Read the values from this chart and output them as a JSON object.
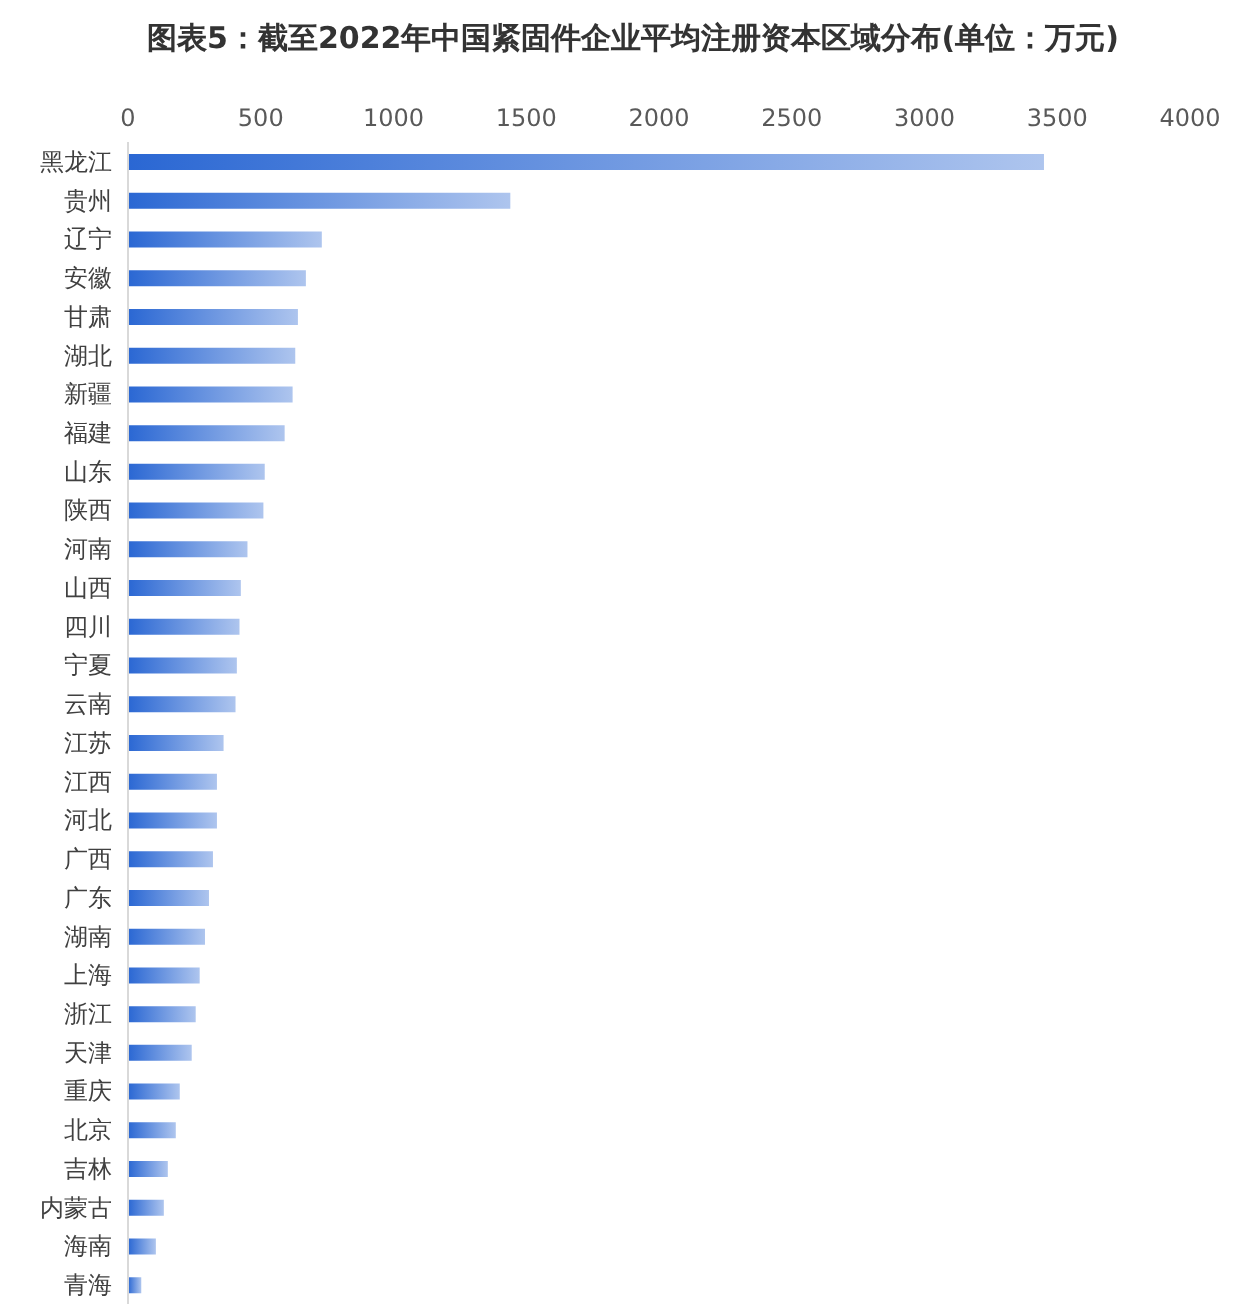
{
  "chart_data": {
    "type": "bar",
    "title": "图表5：截至2022年中国紧固件企业平均注册资本区域分布(单位：万元)",
    "orientation": "horizontal",
    "categories": [
      "黑龙江",
      "贵州",
      "辽宁",
      "安徽",
      "甘肃",
      "湖北",
      "新疆",
      "福建",
      "山东",
      "陕西",
      "河南",
      "山西",
      "四川",
      "宁夏",
      "云南",
      "江苏",
      "江西",
      "河北",
      "广西",
      "广东",
      "湖南",
      "上海",
      "浙江",
      "天津",
      "重庆",
      "北京",
      "吉林",
      "内蒙古",
      "海南",
      "青海"
    ],
    "values": [
      3450,
      1440,
      730,
      670,
      640,
      630,
      620,
      590,
      515,
      510,
      450,
      425,
      420,
      410,
      405,
      360,
      335,
      335,
      320,
      305,
      290,
      270,
      255,
      240,
      195,
      180,
      150,
      135,
      105,
      50
    ],
    "color": "#2a67d3",
    "xlim": [
      0,
      4000
    ],
    "xticks": [
      0,
      500,
      1000,
      1500,
      2000,
      2500,
      3000,
      3500,
      4000
    ]
  }
}
